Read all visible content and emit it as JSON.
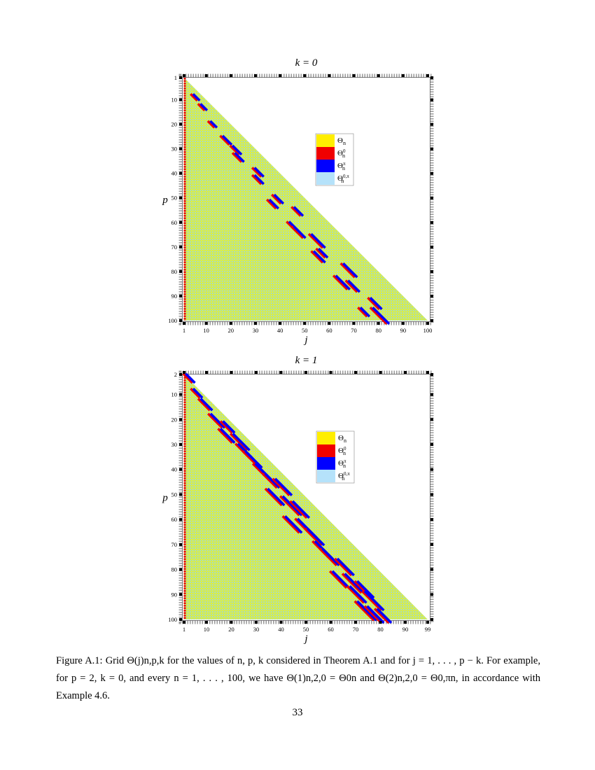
{
  "figures": [
    {
      "title": "k = 0",
      "ylabel": "p",
      "xlabel": "j",
      "yticks": [
        1,
        10,
        20,
        30,
        40,
        50,
        60,
        70,
        80,
        90,
        100
      ],
      "xticks": [
        1,
        10,
        20,
        30,
        40,
        50,
        60,
        70,
        80,
        90,
        100
      ],
      "legend": [
        {
          "symbol": "Θ",
          "sub": "n"
        },
        {
          "symbol": "Θ",
          "sub": "n",
          "sup": "0"
        },
        {
          "symbol": "Θ",
          "sub": "n",
          "sup": "π"
        },
        {
          "symbol": "Θ",
          "sub": "n",
          "sup": "0,π"
        }
      ]
    },
    {
      "title": "k = 1",
      "ylabel": "p",
      "xlabel": "j",
      "yticks": [
        2,
        10,
        20,
        30,
        40,
        50,
        60,
        70,
        80,
        90,
        100
      ],
      "xticks": [
        1,
        10,
        20,
        30,
        40,
        50,
        60,
        70,
        80,
        90,
        99
      ],
      "legend": [
        {
          "symbol": "Θ",
          "sub": "n"
        },
        {
          "symbol": "Θ",
          "sub": "n",
          "sup": "0"
        },
        {
          "symbol": "Θ",
          "sub": "n",
          "sup": "π"
        },
        {
          "symbol": "Θ",
          "sub": "n",
          "sup": "0,π"
        }
      ]
    }
  ],
  "caption": "Figure A.1: Grid Θ(j)n,p,k for the values of n, p, k considered in Theorem A.1 and for j = 1, . . . , p − k. For example, for p = 2, k = 0, and every n = 1, . . . , 100, we have Θ(1)n,2,0 = Θ0n and Θ(2)n,2,0 = Θ0,πn, in accordance with Example 4.6.",
  "page_number": "33"
}
